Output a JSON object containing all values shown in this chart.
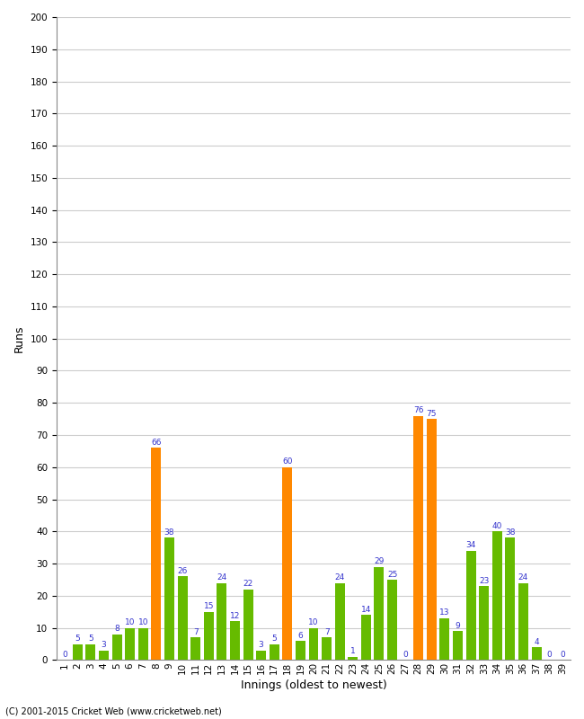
{
  "innings": [
    1,
    2,
    3,
    4,
    5,
    6,
    7,
    8,
    9,
    10,
    11,
    12,
    13,
    14,
    15,
    16,
    17,
    18,
    19,
    20,
    21,
    22,
    23,
    24,
    25,
    26,
    27,
    28,
    29,
    30,
    31,
    32,
    33,
    34,
    35,
    36,
    37,
    38,
    39
  ],
  "runs": [
    0,
    5,
    5,
    3,
    8,
    10,
    10,
    66,
    38,
    26,
    7,
    15,
    24,
    12,
    22,
    3,
    5,
    60,
    6,
    10,
    7,
    24,
    1,
    14,
    29,
    25,
    0,
    76,
    75,
    13,
    9,
    34,
    23,
    40,
    38,
    24,
    4,
    0,
    0
  ],
  "colors": [
    "#66bb00",
    "#66bb00",
    "#66bb00",
    "#66bb00",
    "#66bb00",
    "#66bb00",
    "#66bb00",
    "#ff8800",
    "#66bb00",
    "#66bb00",
    "#66bb00",
    "#66bb00",
    "#66bb00",
    "#66bb00",
    "#66bb00",
    "#66bb00",
    "#66bb00",
    "#ff8800",
    "#66bb00",
    "#66bb00",
    "#66bb00",
    "#66bb00",
    "#66bb00",
    "#66bb00",
    "#66bb00",
    "#66bb00",
    "#66bb00",
    "#ff8800",
    "#ff8800",
    "#66bb00",
    "#66bb00",
    "#66bb00",
    "#66bb00",
    "#66bb00",
    "#66bb00",
    "#66bb00",
    "#66bb00",
    "#66bb00",
    "#66bb00"
  ],
  "xlabel": "Innings (oldest to newest)",
  "ylabel": "Runs",
  "ylim": [
    0,
    200
  ],
  "yticks": [
    0,
    10,
    20,
    30,
    40,
    50,
    60,
    70,
    80,
    90,
    100,
    110,
    120,
    130,
    140,
    150,
    160,
    170,
    180,
    190,
    200
  ],
  "copyright": "(C) 2001-2015 Cricket Web (www.cricketweb.net)",
  "background_color": "#ffffff",
  "grid_color": "#cccccc",
  "label_color": "#3333cc",
  "bar_label_fontsize": 6.5,
  "axis_label_fontsize": 9,
  "tick_fontsize": 7.5
}
